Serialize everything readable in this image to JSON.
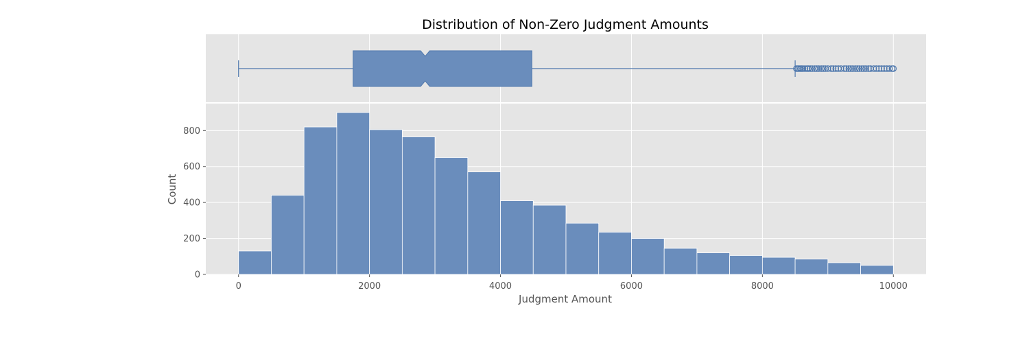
{
  "chart_data": {
    "type": "bar",
    "title": "Distribution of Non-Zero Judgment Amounts",
    "xlabel": "Judgment Amount",
    "ylabel": "Count",
    "xlim": [
      -500,
      10500
    ],
    "ylim": [
      0,
      950
    ],
    "bin_width": 500,
    "bin_edges": [
      0,
      500,
      1000,
      1500,
      2000,
      2500,
      3000,
      3500,
      4000,
      4500,
      5000,
      5500,
      6000,
      6500,
      7000,
      7500,
      8000,
      8500,
      9000,
      9500,
      10000
    ],
    "counts": [
      130,
      440,
      820,
      900,
      805,
      765,
      650,
      570,
      410,
      385,
      285,
      235,
      200,
      145,
      120,
      105,
      95,
      85,
      65,
      50
    ],
    "x_ticks": [
      0,
      2000,
      4000,
      6000,
      8000,
      10000
    ],
    "x_tick_labels": [
      "0",
      "2000",
      "4000",
      "6000",
      "8000",
      "10000"
    ],
    "y_ticks": [
      0,
      200,
      400,
      600,
      800
    ],
    "y_tick_labels": [
      "0",
      "200",
      "400",
      "600",
      "800"
    ],
    "grid": true,
    "boxplot": {
      "whisker_low": 0,
      "q1": 1750,
      "median": 2850,
      "q3": 4480,
      "whisker_high": 8500,
      "notch_low": 2780,
      "notch_high": 2920,
      "outliers": [
        8520,
        8540,
        8560,
        8580,
        8600,
        8620,
        8650,
        8680,
        8700,
        8730,
        8760,
        8800,
        8830,
        8860,
        8900,
        8930,
        8960,
        9000,
        9050,
        9080,
        9120,
        9160,
        9200,
        9250,
        9280,
        9320,
        9350,
        9380,
        9420,
        9450,
        9480,
        9520,
        9550,
        9580,
        9620,
        9650,
        9700,
        9740,
        9780,
        9820,
        9860,
        9900,
        9940,
        9980,
        10000
      ]
    },
    "colors": {
      "bar": "#6a8dbc",
      "bar_edge": "#ffffff",
      "panel": "#e5e5e5",
      "grid": "#ffffff",
      "box": "#6a8dbc",
      "box_line": "#4f78ad"
    }
  }
}
